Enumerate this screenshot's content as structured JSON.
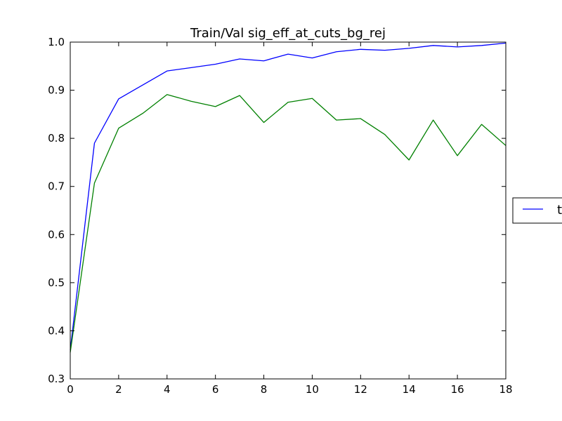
{
  "chart_data": {
    "type": "line",
    "title": "Train/Val sig_eff_at_cuts_bg_rej",
    "xlabel": "",
    "ylabel": "",
    "xlim": [
      0,
      18
    ],
    "ylim": [
      0.3,
      1.0
    ],
    "x_ticks": [
      0,
      2,
      4,
      6,
      8,
      10,
      12,
      14,
      16,
      18
    ],
    "y_ticks": [
      0.3,
      0.4,
      0.5,
      0.6,
      0.7,
      0.8,
      0.9,
      1.0
    ],
    "grid": false,
    "legend_position": "right, outside plot (clipped)",
    "legend_visible_text": "t",
    "x": [
      0,
      1,
      2,
      3,
      4,
      5,
      6,
      7,
      8,
      9,
      10,
      11,
      12,
      13,
      14,
      15,
      16,
      17,
      18
    ],
    "series": [
      {
        "color": "#0000ff",
        "values": [
          0.36,
          0.79,
          0.882,
          0.911,
          0.94,
          0.947,
          0.954,
          0.965,
          0.961,
          0.975,
          0.967,
          0.98,
          0.985,
          0.983,
          0.987,
          0.993,
          0.99,
          0.993,
          0.998
        ]
      },
      {
        "color": "#008000",
        "values": [
          0.355,
          0.707,
          0.821,
          0.852,
          0.891,
          0.877,
          0.866,
          0.889,
          0.833,
          0.875,
          0.883,
          0.838,
          0.841,
          0.808,
          0.755,
          0.838,
          0.764,
          0.829,
          0.785
        ]
      }
    ]
  }
}
